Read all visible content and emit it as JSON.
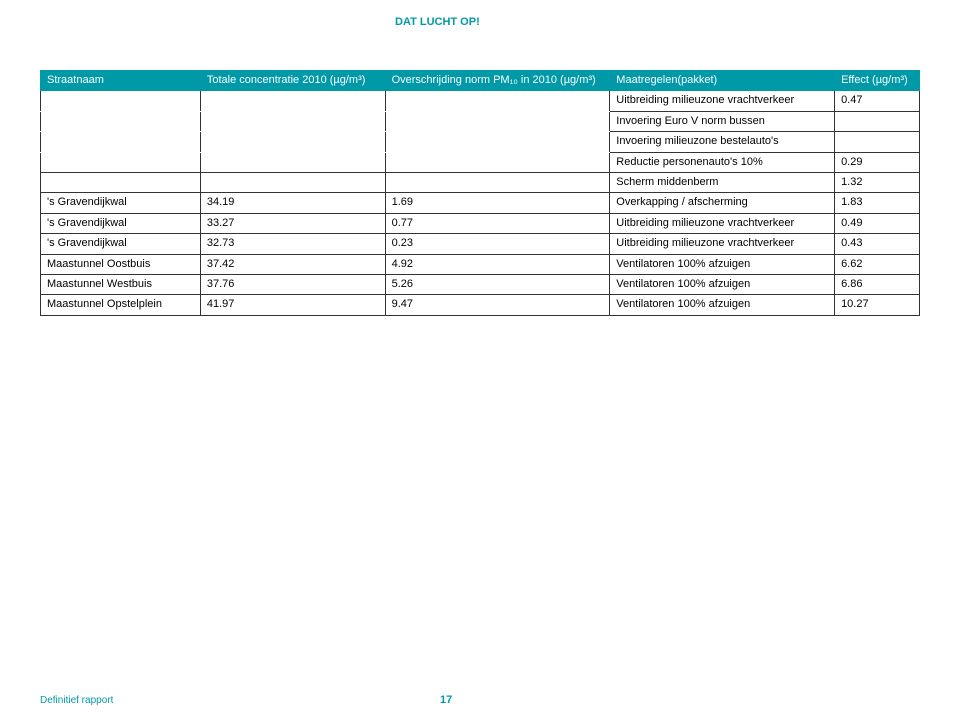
{
  "tagline": "DAT LUCHT OP!",
  "footer_label": "Definitief rapport",
  "page_number": "17",
  "table": {
    "columns": [
      "Straatnaam",
      "Totale concentratie 2010 (µg/m³)",
      "Overschrijding norm PM₁₀ in 2010 (µg/m³)",
      "Maatregelen(pakket)",
      "Effect (µg/m³)"
    ],
    "header_bg": "#0099a8",
    "header_text_color": "#ffffff",
    "border_color": "#333333",
    "accent_color": "#0099a8",
    "font_size": 11,
    "rows": [
      {
        "name": "",
        "tot": "",
        "over": "",
        "meas": "Uitbreiding milieuzone vrachtverkeer",
        "eff": "0.47",
        "cont_above": true,
        "cont_below": true
      },
      {
        "name": "",
        "tot": "",
        "over": "",
        "meas": "Invoering Euro V norm bussen",
        "eff": "",
        "cont_above": true,
        "cont_below": true
      },
      {
        "name": "",
        "tot": "",
        "over": "",
        "meas": "Invoering milieuzone bestelauto's",
        "eff": "",
        "cont_above": true,
        "cont_below": true
      },
      {
        "name": "",
        "tot": "",
        "over": "",
        "meas": "Reductie personenauto's 10%",
        "eff": "0.29",
        "cont_above": true,
        "cont_below": false
      },
      {
        "name": "",
        "tot": "",
        "over": "",
        "meas": "Scherm middenberm",
        "eff": "1.32",
        "cont_above": true,
        "cont_below": false
      },
      {
        "name": "'s Gravendijkwal",
        "tot": "34.19",
        "over": "1.69",
        "meas": "Overkapping / afscherming",
        "eff": "1.83",
        "cont_above": false,
        "cont_below": false
      },
      {
        "name": "'s Gravendijkwal",
        "tot": "33.27",
        "over": "0.77",
        "meas": "Uitbreiding milieuzone vrachtverkeer",
        "eff": "0.49",
        "cont_above": false,
        "cont_below": false
      },
      {
        "name": "'s Gravendijkwal",
        "tot": "32.73",
        "over": "0.23",
        "meas": "Uitbreiding milieuzone vrachtverkeer",
        "eff": "0.43",
        "cont_above": false,
        "cont_below": false
      },
      {
        "name": "Maastunnel Oostbuis",
        "tot": "37.42",
        "over": "4.92",
        "meas": "Ventilatoren 100% afzuigen",
        "eff": "6.62",
        "cont_above": false,
        "cont_below": false
      },
      {
        "name": "Maastunnel Westbuis",
        "tot": "37.76",
        "over": "5.26",
        "meas": "Ventilatoren 100% afzuigen",
        "eff": "6.86",
        "cont_above": false,
        "cont_below": false
      },
      {
        "name": "Maastunnel Opstelplein",
        "tot": "41.97",
        "over": "9.47",
        "meas": "Ventilatoren 100% afzuigen",
        "eff": "10.27",
        "cont_above": false,
        "cont_below": false
      }
    ]
  }
}
